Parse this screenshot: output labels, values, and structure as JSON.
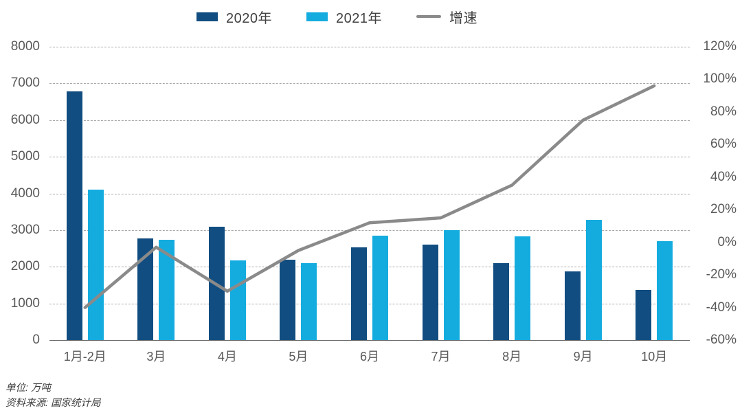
{
  "legend": {
    "items": [
      {
        "label": "2020年",
        "swatch": "bar",
        "color": "#114D80"
      },
      {
        "label": "2021年",
        "swatch": "bar",
        "color": "#14ACDF"
      },
      {
        "label": "增速",
        "swatch": "line",
        "color": "#8A8A8A"
      }
    ]
  },
  "chart_data": {
    "type": "bar",
    "subtype": "grouped-bars-with-line-overlay-dual-axis",
    "title": "",
    "categories": [
      "1月-2月",
      "3月",
      "4月",
      "5月",
      "6月",
      "7月",
      "8月",
      "9月",
      "10月"
    ],
    "series": [
      {
        "name": "2020年",
        "type": "bar",
        "axis": "left",
        "color": "#114D80",
        "values": [
          6790,
          2780,
          3090,
          2200,
          2530,
          2600,
          2090,
          1870,
          1370
        ]
      },
      {
        "name": "2021年",
        "type": "bar",
        "axis": "left",
        "color": "#14ACDF",
        "values": [
          4110,
          2730,
          2170,
          2100,
          2840,
          2990,
          2820,
          3280,
          2690
        ]
      },
      {
        "name": "增速",
        "type": "line",
        "axis": "right",
        "color": "#8A8A8A",
        "unit": "%",
        "values": [
          -40,
          -3,
          -30,
          -5,
          12,
          15,
          35,
          75,
          96
        ]
      }
    ],
    "left_axis": {
      "min": 0,
      "max": 8000,
      "step": 1000,
      "ticks": [
        "0",
        "1000",
        "2000",
        "3000",
        "4000",
        "5000",
        "6000",
        "7000",
        "8000"
      ]
    },
    "right_axis": {
      "min": -60,
      "max": 120,
      "step": 20,
      "unit": "%",
      "ticks": [
        "-60%",
        "-40%",
        "-20%",
        "0%",
        "20%",
        "40%",
        "60%",
        "80%",
        "100%",
        "120%"
      ]
    },
    "grid": {
      "horizontal": "dashed",
      "vertical": "none"
    },
    "legend_position": "top"
  },
  "footer": {
    "unit_line": "单位: 万吨",
    "source_line": "资料来源: 国家统计局"
  }
}
